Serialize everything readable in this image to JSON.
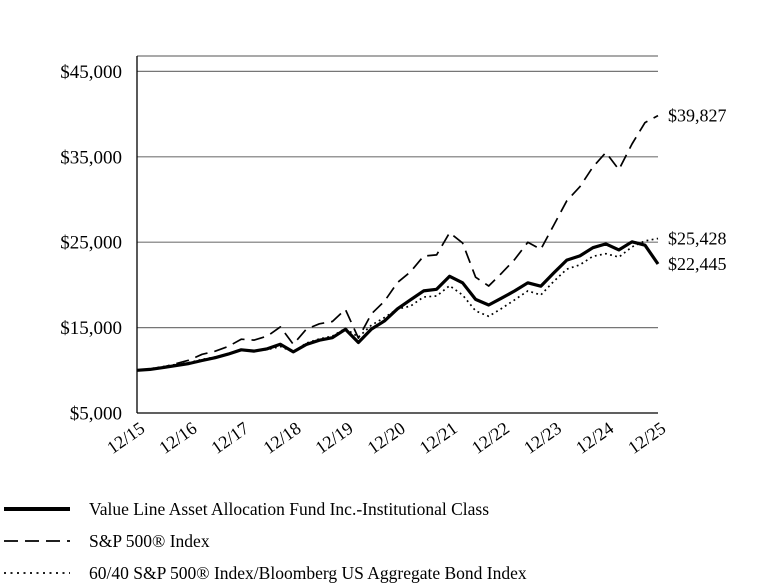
{
  "page": {
    "background": "#ffffff",
    "text_color": "#000000"
  },
  "chart_data": {
    "type": "line",
    "title": "",
    "xlabel": "",
    "ylabel": "",
    "grid": "horizontal",
    "legend_position": "bottom-left",
    "line_color": "#000000",
    "grid_color": "#767676",
    "ylim": [
      5000,
      46800
    ],
    "y_ticks": [
      {
        "label": "$5,000",
        "value": 5000
      },
      {
        "label": "$15,000",
        "value": 15000
      },
      {
        "label": "$25,000",
        "value": 25000
      },
      {
        "label": "$35,000",
        "value": 35000
      },
      {
        "label": "$45,000",
        "value": 45000
      }
    ],
    "x_labels": [
      "12/15",
      "12/16",
      "12/17",
      "12/18",
      "12/19",
      "12/20",
      "12/21",
      "12/22",
      "12/23",
      "12/24",
      "12/25"
    ],
    "points_per_year": 4,
    "series": [
      {
        "name": "Value Line Asset Allocation Fund Inc.-Institutional Class",
        "style": "solid-thick",
        "end_label": "$22,445",
        "end_value": 22445,
        "values": [
          10000,
          10100,
          10310,
          10560,
          10800,
          11150,
          11480,
          11900,
          12400,
          12250,
          12520,
          13060,
          12150,
          13020,
          13520,
          13820,
          14800,
          13250,
          14820,
          15780,
          17200,
          18250,
          19300,
          19480,
          21000,
          20250,
          18300,
          17650,
          18450,
          19300,
          20250,
          19850,
          21400,
          22900,
          23400,
          24350,
          24800,
          24100,
          25050,
          24650,
          22445
        ]
      },
      {
        "name": "S&P 500® Index",
        "style": "dashed",
        "end_label": "$39,827",
        "end_value": 39827,
        "values": [
          10000,
          10134,
          10380,
          10780,
          11195,
          11870,
          12240,
          12790,
          13640,
          13535,
          14000,
          15080,
          13040,
          14815,
          15450,
          15715,
          17135,
          13775,
          16605,
          18090,
          20280,
          21535,
          23375,
          23510,
          26105,
          24905,
          20895,
          19875,
          21375,
          22980,
          24985,
          24170,
          26995,
          29845,
          31500,
          33800,
          35500,
          33500,
          36500,
          39000,
          39827
        ]
      },
      {
        "name": "60/40 S&P 500® Index/Bloomberg US Aggregate Bond Index",
        "style": "dotted",
        "end_label": "$25,428",
        "end_value": 25428,
        "values": [
          10000,
          10170,
          10430,
          10690,
          10900,
          11270,
          11560,
          11900,
          12380,
          12230,
          12420,
          12790,
          12140,
          13180,
          13680,
          14000,
          14900,
          13880,
          15280,
          16180,
          17180,
          17520,
          18580,
          18700,
          19900,
          18820,
          16950,
          16320,
          17250,
          18250,
          19300,
          18820,
          20420,
          21850,
          22350,
          23350,
          23650,
          23250,
          24450,
          25150,
          25428
        ]
      }
    ]
  }
}
